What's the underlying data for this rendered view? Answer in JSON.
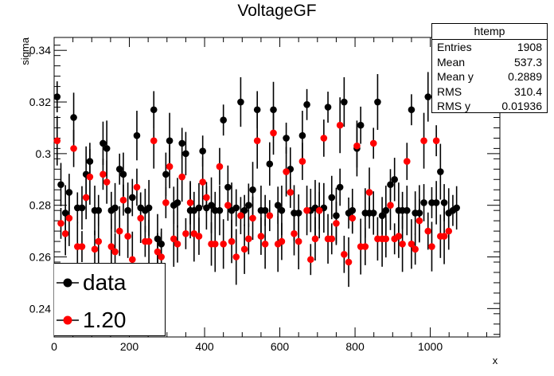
{
  "chart_data": {
    "type": "scatter",
    "title": "VoltageGF",
    "xlabel": "x",
    "ylabel": "sigma",
    "xlim": [
      0,
      1185
    ],
    "ylim": [
      0.229,
      0.345
    ],
    "x_ticks": [
      0,
      200,
      400,
      600,
      800,
      1000
    ],
    "y_ticks": [
      0.24,
      0.26,
      0.28,
      0.3,
      0.32,
      0.34
    ],
    "y_tick_labels": [
      "0.24",
      "0.26",
      "0.28",
      "0.3",
      "0.32",
      "0.34"
    ],
    "legend_position": "bottom-left",
    "series": [
      {
        "name": "data",
        "color": "#000000",
        "points": [
          [
            8,
            0.322
          ],
          [
            18,
            0.288
          ],
          [
            30,
            0.277
          ],
          [
            40,
            0.285
          ],
          [
            52,
            0.314
          ],
          [
            62,
            0.279
          ],
          [
            74,
            0.279
          ],
          [
            85,
            0.292
          ],
          [
            95,
            0.297
          ],
          [
            108,
            0.278
          ],
          [
            118,
            0.278
          ],
          [
            130,
            0.304
          ],
          [
            140,
            0.302
          ],
          [
            152,
            0.278
          ],
          [
            162,
            0.279
          ],
          [
            174,
            0.294
          ],
          [
            184,
            0.292
          ],
          [
            196,
            0.278
          ],
          [
            208,
            0.283
          ],
          [
            220,
            0.307
          ],
          [
            230,
            0.279
          ],
          [
            242,
            0.278
          ],
          [
            252,
            0.279
          ],
          [
            265,
            0.317
          ],
          [
            275,
            0.267
          ],
          [
            285,
            0.265
          ],
          [
            297,
            0.292
          ],
          [
            307,
            0.305
          ],
          [
            318,
            0.28
          ],
          [
            328,
            0.281
          ],
          [
            340,
            0.304
          ],
          [
            350,
            0.3
          ],
          [
            362,
            0.278
          ],
          [
            372,
            0.278
          ],
          [
            385,
            0.279
          ],
          [
            395,
            0.301
          ],
          [
            405,
            0.279
          ],
          [
            418,
            0.28
          ],
          [
            428,
            0.278
          ],
          [
            440,
            0.278
          ],
          [
            450,
            0.313
          ],
          [
            462,
            0.287
          ],
          [
            472,
            0.278
          ],
          [
            484,
            0.279
          ],
          [
            496,
            0.32
          ],
          [
            506,
            0.278
          ],
          [
            517,
            0.28
          ],
          [
            528,
            0.286
          ],
          [
            540,
            0.317
          ],
          [
            550,
            0.278
          ],
          [
            561,
            0.278
          ],
          [
            573,
            0.296
          ],
          [
            583,
            0.317
          ],
          [
            595,
            0.28
          ],
          [
            605,
            0.278
          ],
          [
            617,
            0.306
          ],
          [
            628,
            0.294
          ],
          [
            638,
            0.277
          ],
          [
            650,
            0.277
          ],
          [
            660,
            0.307
          ],
          [
            672,
            0.319
          ],
          [
            682,
            0.278
          ],
          [
            694,
            0.279
          ],
          [
            705,
            0.278
          ],
          [
            717,
            0.279
          ],
          [
            728,
            0.318
          ],
          [
            738,
            0.283
          ],
          [
            750,
            0.276
          ],
          [
            760,
            0.287
          ],
          [
            771,
            0.32
          ],
          [
            783,
            0.277
          ],
          [
            793,
            0.278
          ],
          [
            805,
            0.302
          ],
          [
            815,
            0.311
          ],
          [
            827,
            0.277
          ],
          [
            838,
            0.277
          ],
          [
            849,
            0.277
          ],
          [
            860,
            0.32
          ],
          [
            872,
            0.276
          ],
          [
            882,
            0.278
          ],
          [
            894,
            0.288
          ],
          [
            905,
            0.29
          ],
          [
            916,
            0.278
          ],
          [
            926,
            0.278
          ],
          [
            938,
            0.278
          ],
          [
            950,
            0.317
          ],
          [
            960,
            0.277
          ],
          [
            971,
            0.277
          ],
          [
            983,
            0.281
          ],
          [
            994,
            0.322
          ],
          [
            1004,
            0.281
          ],
          [
            1016,
            0.281
          ],
          [
            1027,
            0.293
          ],
          [
            1037,
            0.281
          ],
          [
            1049,
            0.277
          ],
          [
            1060,
            0.278
          ],
          [
            1070,
            0.279
          ]
        ]
      },
      {
        "name": "1.20",
        "color": "#ff0000",
        "points": [
          [
            8,
            0.305
          ],
          [
            18,
            0.273
          ],
          [
            30,
            0.269
          ],
          [
            40,
            0.275
          ],
          [
            52,
            0.302
          ],
          [
            62,
            0.264
          ],
          [
            74,
            0.264
          ],
          [
            85,
            0.283
          ],
          [
            95,
            0.291
          ],
          [
            108,
            0.263
          ],
          [
            118,
            0.266
          ],
          [
            130,
            0.292
          ],
          [
            140,
            0.289
          ],
          [
            152,
            0.264
          ],
          [
            162,
            0.262
          ],
          [
            174,
            0.27
          ],
          [
            184,
            0.282
          ],
          [
            196,
            0.268
          ],
          [
            208,
            0.259
          ],
          [
            220,
            0.287
          ],
          [
            230,
            0.275
          ],
          [
            242,
            0.266
          ],
          [
            252,
            0.266
          ],
          [
            265,
            0.305
          ],
          [
            275,
            0.262
          ],
          [
            285,
            0.26
          ],
          [
            297,
            0.281
          ],
          [
            307,
            0.295
          ],
          [
            318,
            0.267
          ],
          [
            328,
            0.265
          ],
          [
            340,
            0.291
          ],
          [
            350,
            0.269
          ],
          [
            362,
            0.281
          ],
          [
            372,
            0.269
          ],
          [
            385,
            0.268
          ],
          [
            395,
            0.289
          ],
          [
            405,
            0.283
          ],
          [
            418,
            0.265
          ],
          [
            428,
            0.265
          ],
          [
            440,
            0.295
          ],
          [
            450,
            0.265
          ],
          [
            462,
            0.28
          ],
          [
            472,
            0.266
          ],
          [
            484,
            0.26
          ],
          [
            496,
            0.276
          ],
          [
            506,
            0.263
          ],
          [
            517,
            0.267
          ],
          [
            528,
            0.275
          ],
          [
            540,
            0.305
          ],
          [
            550,
            0.268
          ],
          [
            561,
            0.265
          ],
          [
            573,
            0.276
          ],
          [
            583,
            0.308
          ],
          [
            595,
            0.265
          ],
          [
            605,
            0.266
          ],
          [
            617,
            0.293
          ],
          [
            628,
            0.285
          ],
          [
            638,
            0.269
          ],
          [
            650,
            0.266
          ],
          [
            660,
            0.297
          ],
          [
            672,
            0.278
          ],
          [
            682,
            0.259
          ],
          [
            694,
            0.267
          ],
          [
            705,
            0.278
          ],
          [
            717,
            0.306
          ],
          [
            728,
            0.267
          ],
          [
            738,
            0.267
          ],
          [
            750,
            0.273
          ],
          [
            760,
            0.311
          ],
          [
            771,
            0.261
          ],
          [
            783,
            0.258
          ],
          [
            793,
            0.275
          ],
          [
            805,
            0.303
          ],
          [
            815,
            0.264
          ],
          [
            827,
            0.264
          ],
          [
            838,
            0.285
          ],
          [
            849,
            0.304
          ],
          [
            860,
            0.267
          ],
          [
            872,
            0.267
          ],
          [
            882,
            0.267
          ],
          [
            894,
            0.28
          ],
          [
            905,
            0.267
          ],
          [
            916,
            0.268
          ],
          [
            926,
            0.265
          ],
          [
            938,
            0.297
          ],
          [
            950,
            0.265
          ],
          [
            960,
            0.263
          ],
          [
            971,
            0.274
          ],
          [
            983,
            0.305
          ],
          [
            994,
            0.27
          ],
          [
            1004,
            0.264
          ],
          [
            1016,
            0.305
          ],
          [
            1027,
            0.268
          ],
          [
            1037,
            0.268
          ],
          [
            1049,
            0.27
          ]
        ]
      }
    ],
    "stats_box": {
      "name": "htemp",
      "rows": [
        {
          "label": "Entries",
          "value": "1908"
        },
        {
          "label": "Mean",
          "value": "537.3"
        },
        {
          "label": "Mean y",
          "value": "0.2889"
        },
        {
          "label": "RMS",
          "value": "310.4"
        },
        {
          "label": "RMS y",
          "value": "0.01936"
        }
      ]
    }
  }
}
